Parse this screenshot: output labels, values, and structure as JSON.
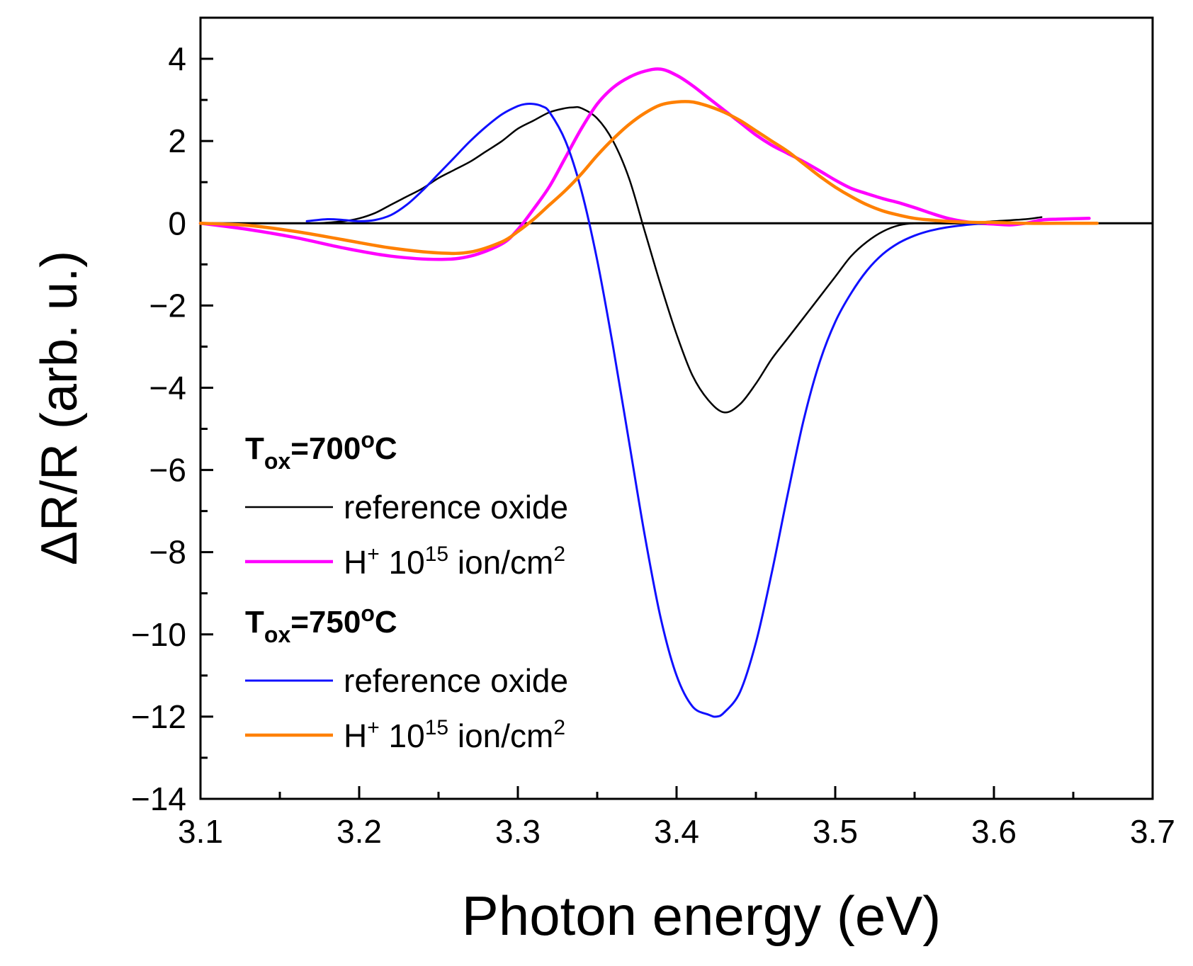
{
  "chart_data": {
    "type": "line",
    "xlabel": "Photon energy (eV)",
    "ylabel": "ΔR/R   (arb. u.)",
    "xlim": [
      3.1,
      3.7
    ],
    "ylim": [
      -14,
      5
    ],
    "xticks": [
      "3.1",
      "3.2",
      "3.3",
      "3.4",
      "3.5",
      "3.6",
      "3.7"
    ],
    "yticks": [
      "4",
      "2",
      "0",
      "−2",
      "−4",
      "−6",
      "−8",
      "−10",
      "−12",
      "−14"
    ],
    "zero_line": true,
    "legend": {
      "placement": "bottom-left",
      "groups": [
        {
          "title": {
            "base": "T",
            "sub": "ox",
            "rest": "=700",
            "sup": "o",
            "end": "C"
          },
          "entries": [
            {
              "series": 0,
              "text": "reference oxide"
            },
            {
              "series": 1,
              "base": "H",
              "sup1": "+",
              "mid": " 10",
              "sup2": "15",
              "rest": " ion/cm",
              "sup3": "2"
            }
          ]
        },
        {
          "title": {
            "base": "T",
            "sub": "ox",
            "rest": "=750",
            "sup": "o",
            "end": "C"
          },
          "entries": [
            {
              "series": 2,
              "text": "reference oxide"
            },
            {
              "series": 3,
              "base": "H",
              "sup1": "+",
              "mid": " 10",
              "sup2": "15",
              "rest": " ion/cm",
              "sup3": "2"
            }
          ]
        }
      ]
    },
    "series": [
      {
        "name": "Tox=700oC reference oxide",
        "color": "#000000",
        "width": 2.5,
        "x": [
          3.175,
          3.19,
          3.2,
          3.21,
          3.22,
          3.23,
          3.24,
          3.25,
          3.26,
          3.27,
          3.28,
          3.29,
          3.3,
          3.31,
          3.32,
          3.33,
          3.335,
          3.34,
          3.35,
          3.36,
          3.37,
          3.38,
          3.39,
          3.4,
          3.41,
          3.42,
          3.43,
          3.44,
          3.45,
          3.46,
          3.47,
          3.48,
          3.49,
          3.5,
          3.51,
          3.52,
          3.53,
          3.54,
          3.55,
          3.56,
          3.58,
          3.6,
          3.62,
          3.63
        ],
        "y": [
          0.0,
          0.05,
          0.12,
          0.25,
          0.45,
          0.65,
          0.85,
          1.1,
          1.3,
          1.5,
          1.75,
          2.0,
          2.3,
          2.5,
          2.7,
          2.8,
          2.82,
          2.8,
          2.55,
          2.0,
          1.1,
          -0.2,
          -1.5,
          -2.7,
          -3.7,
          -4.3,
          -4.6,
          -4.4,
          -3.9,
          -3.3,
          -2.8,
          -2.3,
          -1.8,
          -1.3,
          -0.8,
          -0.45,
          -0.2,
          -0.05,
          0.0,
          0.0,
          0.0,
          0.05,
          0.1,
          0.15
        ]
      },
      {
        "name": "Tox=700oC H+ 10^15 ion/cm2",
        "color": "#ff00ff",
        "width": 4.5,
        "x": [
          3.1,
          3.13,
          3.16,
          3.19,
          3.22,
          3.25,
          3.27,
          3.29,
          3.3,
          3.31,
          3.32,
          3.33,
          3.34,
          3.35,
          3.36,
          3.37,
          3.38,
          3.39,
          3.4,
          3.41,
          3.42,
          3.43,
          3.44,
          3.45,
          3.46,
          3.47,
          3.48,
          3.49,
          3.5,
          3.51,
          3.52,
          3.53,
          3.54,
          3.55,
          3.56,
          3.57,
          3.58,
          3.59,
          3.6,
          3.61,
          3.62,
          3.63,
          3.64,
          3.66
        ],
        "y": [
          0.0,
          -0.15,
          -0.35,
          -0.6,
          -0.8,
          -0.88,
          -0.8,
          -0.5,
          -0.15,
          0.35,
          0.9,
          1.6,
          2.3,
          2.9,
          3.3,
          3.55,
          3.7,
          3.75,
          3.6,
          3.35,
          3.05,
          2.75,
          2.45,
          2.15,
          1.9,
          1.7,
          1.5,
          1.28,
          1.05,
          0.85,
          0.72,
          0.6,
          0.5,
          0.38,
          0.25,
          0.13,
          0.05,
          0.0,
          -0.02,
          -0.04,
          0.0,
          0.08,
          0.1,
          0.12
        ]
      },
      {
        "name": "Tox=750oC reference oxide",
        "color": "#1010ff",
        "width": 3,
        "x": [
          3.167,
          3.18,
          3.19,
          3.2,
          3.21,
          3.22,
          3.23,
          3.24,
          3.25,
          3.26,
          3.27,
          3.28,
          3.29,
          3.3,
          3.305,
          3.31,
          3.315,
          3.32,
          3.33,
          3.34,
          3.35,
          3.36,
          3.37,
          3.38,
          3.39,
          3.4,
          3.41,
          3.42,
          3.425,
          3.43,
          3.44,
          3.45,
          3.46,
          3.47,
          3.48,
          3.49,
          3.5,
          3.51,
          3.52,
          3.53,
          3.54,
          3.55,
          3.56,
          3.57,
          3.58,
          3.595
        ],
        "y": [
          0.05,
          0.1,
          0.08,
          0.05,
          0.08,
          0.2,
          0.45,
          0.8,
          1.2,
          1.6,
          2.0,
          2.35,
          2.65,
          2.85,
          2.9,
          2.9,
          2.85,
          2.7,
          2.0,
          0.8,
          -0.9,
          -3.0,
          -5.3,
          -7.6,
          -9.6,
          -11.0,
          -11.75,
          -11.95,
          -12.0,
          -11.9,
          -11.4,
          -10.2,
          -8.5,
          -6.6,
          -4.8,
          -3.4,
          -2.4,
          -1.7,
          -1.15,
          -0.75,
          -0.48,
          -0.3,
          -0.18,
          -0.1,
          -0.05,
          0.0
        ]
      },
      {
        "name": "Tox=750oC H+ 10^15 ion/cm2",
        "color": "#ff8000",
        "width": 4.5,
        "x": [
          3.1,
          3.13,
          3.16,
          3.19,
          3.22,
          3.25,
          3.27,
          3.29,
          3.3,
          3.31,
          3.32,
          3.33,
          3.34,
          3.35,
          3.36,
          3.37,
          3.38,
          3.39,
          3.4,
          3.41,
          3.42,
          3.43,
          3.44,
          3.45,
          3.46,
          3.47,
          3.48,
          3.49,
          3.5,
          3.51,
          3.52,
          3.53,
          3.54,
          3.55,
          3.56,
          3.57,
          3.58,
          3.59,
          3.6,
          3.62,
          3.64,
          3.665
        ],
        "y": [
          0.0,
          -0.05,
          -0.2,
          -0.4,
          -0.6,
          -0.72,
          -0.7,
          -0.45,
          -0.2,
          0.1,
          0.45,
          0.8,
          1.2,
          1.65,
          2.05,
          2.4,
          2.68,
          2.88,
          2.95,
          2.95,
          2.85,
          2.7,
          2.5,
          2.25,
          2.0,
          1.75,
          1.45,
          1.15,
          0.88,
          0.65,
          0.45,
          0.3,
          0.2,
          0.12,
          0.08,
          0.05,
          0.03,
          0.02,
          0.02,
          0.0,
          0.0,
          0.0
        ]
      }
    ]
  }
}
